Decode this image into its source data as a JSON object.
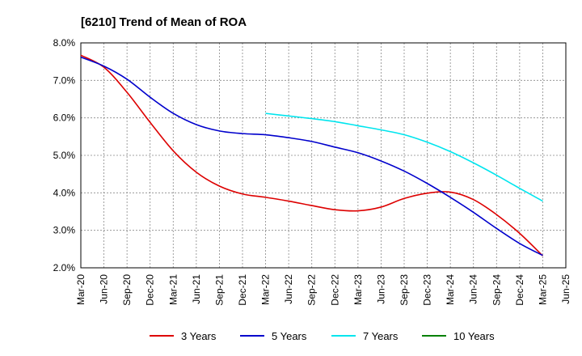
{
  "chart_data": {
    "type": "line",
    "title": "[6210]  Trend of Mean of ROA",
    "xlabel": "",
    "ylabel": "",
    "ylim": [
      2.0,
      8.0
    ],
    "y_ticks": [
      "8.0%",
      "7.0%",
      "6.0%",
      "5.0%",
      "4.0%",
      "3.0%",
      "2.0%"
    ],
    "y_tick_values": [
      8.0,
      7.0,
      6.0,
      5.0,
      4.0,
      3.0,
      2.0
    ],
    "categories": [
      "Mar-20",
      "Jun-20",
      "Sep-20",
      "Dec-20",
      "Mar-21",
      "Jun-21",
      "Sep-21",
      "Dec-21",
      "Mar-22",
      "Jun-22",
      "Sep-22",
      "Dec-22",
      "Mar-23",
      "Jun-23",
      "Sep-23",
      "Dec-23",
      "Mar-24",
      "Jun-24",
      "Sep-24",
      "Dec-24",
      "Mar-25",
      "Jun-25"
    ],
    "grid": true,
    "legend_position": "bottom",
    "series": [
      {
        "name": "3 Years",
        "color": "#dd0000",
        "values": [
          7.67,
          7.35,
          6.68,
          5.88,
          5.12,
          4.55,
          4.18,
          3.97,
          3.88,
          3.78,
          3.66,
          3.55,
          3.52,
          3.62,
          3.85,
          3.99,
          4.02,
          3.82,
          3.42,
          2.92,
          2.32,
          null
        ]
      },
      {
        "name": "5 Years",
        "color": "#0000cc",
        "values": [
          7.62,
          7.38,
          7.03,
          6.55,
          6.12,
          5.82,
          5.65,
          5.58,
          5.55,
          5.47,
          5.37,
          5.22,
          5.07,
          4.85,
          4.58,
          4.25,
          3.88,
          3.48,
          3.05,
          2.65,
          2.33,
          null
        ]
      },
      {
        "name": "7 Years",
        "color": "#00e5ee",
        "values": [
          null,
          null,
          null,
          null,
          null,
          null,
          null,
          null,
          6.12,
          6.05,
          5.98,
          5.9,
          5.79,
          5.68,
          5.55,
          5.35,
          5.1,
          4.8,
          4.47,
          4.12,
          3.78,
          null
        ]
      },
      {
        "name": "10 Years",
        "color": "#008000",
        "values": [
          null,
          null,
          null,
          null,
          null,
          null,
          null,
          null,
          null,
          null,
          null,
          null,
          null,
          null,
          null,
          null,
          null,
          null,
          null,
          null,
          null,
          null
        ]
      }
    ]
  }
}
